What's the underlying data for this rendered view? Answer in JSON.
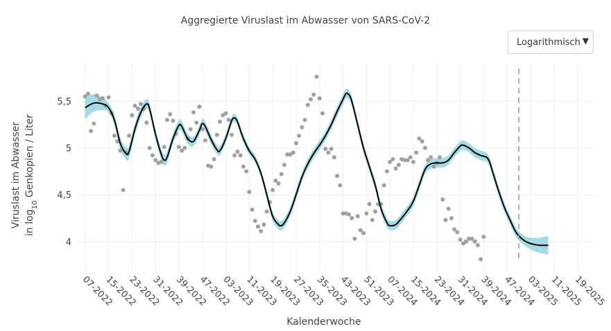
{
  "title": "Aggregierte Viruslast im Abwasser von SARS-CoV-2",
  "dropdown": {
    "selected": "Logarithmisch",
    "arrow_icon": "triangle-down-icon"
  },
  "chart_data": {
    "type": "line",
    "title": "Aggregierte Viruslast im Abwasser von SARS-CoV-2",
    "xlabel": "Kalenderwoche",
    "ylabel_line1": "Viruslast im Abwasser",
    "ylabel_line2_prefix": "in log",
    "ylabel_line2_sub": "10",
    "ylabel_line2_suffix": " Genkopien / Liter",
    "x_ticks": [
      "07-2022",
      "15-2022",
      "23-2022",
      "31-2022",
      "39-2022",
      "47-2022",
      "03-2023",
      "11-2023",
      "19-2023",
      "27-2023",
      "35-2023",
      "43-2023",
      "51-2023",
      "07-2024",
      "15-2024",
      "23-2024",
      "31-2024",
      "39-2024",
      "47-2024",
      "03-2025",
      "11-2025",
      "19-2025"
    ],
    "x_tick_index": [
      0,
      8,
      16,
      24,
      32,
      40,
      48,
      56,
      64,
      72,
      80,
      88,
      96,
      104,
      112,
      120,
      128,
      136,
      144,
      152,
      160,
      168
    ],
    "y_ticks": [
      4,
      4.5,
      5,
      5.5
    ],
    "y_tick_labels": [
      "4",
      "4,5",
      "5",
      "5,5"
    ],
    "ylim": [
      3.68,
      5.9
    ],
    "xlim": [
      -3,
      174
    ],
    "vline_week_index": 148,
    "colors": {
      "line": "#000000",
      "band": "#a6dbe6",
      "points": "#a0a0a0",
      "vline": "#999999",
      "grid": "#eeeeee"
    },
    "trend": [
      [
        0,
        5.43
      ],
      [
        3,
        5.48
      ],
      [
        6,
        5.47
      ],
      [
        8,
        5.43
      ],
      [
        10,
        5.3
      ],
      [
        12,
        5.05
      ],
      [
        14,
        4.94
      ],
      [
        15,
        4.96
      ],
      [
        17,
        5.2
      ],
      [
        19,
        5.38
      ],
      [
        21,
        5.47
      ],
      [
        22,
        5.42
      ],
      [
        24,
        5.15
      ],
      [
        26,
        4.93
      ],
      [
        27,
        4.87
      ],
      [
        28,
        4.9
      ],
      [
        30,
        5.1
      ],
      [
        32,
        5.24
      ],
      [
        33,
        5.23
      ],
      [
        35,
        5.1
      ],
      [
        37,
        5.07
      ],
      [
        39,
        5.19
      ],
      [
        40,
        5.26
      ],
      [
        41,
        5.23
      ],
      [
        43,
        5.09
      ],
      [
        45,
        4.98
      ],
      [
        46,
        4.97
      ],
      [
        48,
        5.1
      ],
      [
        50,
        5.29
      ],
      [
        51,
        5.32
      ],
      [
        52,
        5.28
      ],
      [
        54,
        5.1
      ],
      [
        56,
        4.97
      ],
      [
        58,
        4.88
      ],
      [
        60,
        4.73
      ],
      [
        62,
        4.5
      ],
      [
        64,
        4.27
      ],
      [
        66,
        4.18
      ],
      [
        67,
        4.17
      ],
      [
        68,
        4.2
      ],
      [
        70,
        4.32
      ],
      [
        72,
        4.5
      ],
      [
        74,
        4.69
      ],
      [
        76,
        4.83
      ],
      [
        78,
        4.94
      ],
      [
        80,
        5.03
      ],
      [
        82,
        5.13
      ],
      [
        84,
        5.25
      ],
      [
        86,
        5.39
      ],
      [
        88,
        5.52
      ],
      [
        89,
        5.58
      ],
      [
        90,
        5.57
      ],
      [
        91,
        5.5
      ],
      [
        93,
        5.25
      ],
      [
        95,
        5.0
      ],
      [
        97,
        4.8
      ],
      [
        99,
        4.6
      ],
      [
        101,
        4.35
      ],
      [
        103,
        4.2
      ],
      [
        104,
        4.17
      ],
      [
        106,
        4.18
      ],
      [
        108,
        4.25
      ],
      [
        110,
        4.33
      ],
      [
        112,
        4.43
      ],
      [
        114,
        4.6
      ],
      [
        116,
        4.77
      ],
      [
        118,
        4.83
      ],
      [
        120,
        4.84
      ],
      [
        122,
        4.84
      ],
      [
        124,
        4.87
      ],
      [
        126,
        4.95
      ],
      [
        128,
        5.02
      ],
      [
        129,
        5.03
      ],
      [
        131,
        5.0
      ],
      [
        133,
        4.95
      ],
      [
        135,
        4.92
      ],
      [
        137,
        4.9
      ],
      [
        138,
        4.85
      ],
      [
        139,
        4.75
      ],
      [
        141,
        4.55
      ],
      [
        143,
        4.37
      ],
      [
        145,
        4.23
      ],
      [
        147,
        4.1
      ],
      [
        149,
        4.03
      ],
      [
        151,
        3.99
      ],
      [
        153,
        3.97
      ],
      [
        155,
        3.96
      ],
      [
        157,
        3.96
      ],
      [
        158,
        3.96
      ]
    ],
    "band_halfwidth": [
      [
        0,
        0.12
      ],
      [
        8,
        0.05
      ],
      [
        15,
        0.07
      ],
      [
        22,
        0.05
      ],
      [
        27,
        0.06
      ],
      [
        40,
        0.05
      ],
      [
        60,
        0.04
      ],
      [
        67,
        0.05
      ],
      [
        89,
        0.05
      ],
      [
        104,
        0.05
      ],
      [
        128,
        0.05
      ],
      [
        140,
        0.05
      ],
      [
        150,
        0.05
      ],
      [
        158,
        0.1
      ]
    ],
    "points": [
      [
        0,
        5.55
      ],
      [
        1,
        5.58
      ],
      [
        2,
        5.18
      ],
      [
        3,
        5.26
      ],
      [
        4,
        5.56
      ],
      [
        5,
        5.52
      ],
      [
        6,
        5.53
      ],
      [
        7,
        5.45
      ],
      [
        8,
        5.54
      ],
      [
        9,
        5.37
      ],
      [
        10,
        5.13
      ],
      [
        11,
        5.07
      ],
      [
        12,
        4.97
      ],
      [
        13,
        4.55
      ],
      [
        14,
        4.95
      ],
      [
        15,
        5.13
      ],
      [
        16,
        5.35
      ],
      [
        17,
        5.45
      ],
      [
        18,
        5.42
      ],
      [
        19,
        5.47
      ],
      [
        20,
        5.42
      ],
      [
        21,
        5.27
      ],
      [
        22,
        5.0
      ],
      [
        23,
        4.92
      ],
      [
        24,
        4.87
      ],
      [
        25,
        4.84
      ],
      [
        26,
        4.85
      ],
      [
        27,
        5.01
      ],
      [
        28,
        5.3
      ],
      [
        29,
        5.36
      ],
      [
        30,
        5.29
      ],
      [
        31,
        5.15
      ],
      [
        32,
        5.01
      ],
      [
        33,
        4.97
      ],
      [
        34,
        5.0
      ],
      [
        35,
        5.1
      ],
      [
        36,
        5.2
      ],
      [
        37,
        5.38
      ],
      [
        38,
        5.27
      ],
      [
        39,
        5.44
      ],
      [
        40,
        5.2
      ],
      [
        41,
        5.08
      ],
      [
        42,
        4.81
      ],
      [
        43,
        4.8
      ],
      [
        44,
        4.88
      ],
      [
        45,
        5.14
      ],
      [
        46,
        5.28
      ],
      [
        47,
        5.35
      ],
      [
        48,
        5.37
      ],
      [
        49,
        5.3
      ],
      [
        50,
        5.14
      ],
      [
        51,
        4.92
      ],
      [
        52,
        4.96
      ],
      [
        53,
        4.92
      ],
      [
        54,
        4.8
      ],
      [
        55,
        4.75
      ],
      [
        56,
        4.53
      ],
      [
        57,
        4.34
      ],
      [
        58,
        4.22
      ],
      [
        59,
        4.16
      ],
      [
        60,
        4.11
      ],
      [
        61,
        4.18
      ],
      [
        62,
        4.32
      ],
      [
        63,
        4.42
      ],
      [
        64,
        4.55
      ],
      [
        65,
        4.65
      ],
      [
        66,
        4.62
      ],
      [
        67,
        4.72
      ],
      [
        68,
        4.82
      ],
      [
        69,
        4.93
      ],
      [
        70,
        4.93
      ],
      [
        71,
        4.95
      ],
      [
        72,
        5.05
      ],
      [
        73,
        5.13
      ],
      [
        74,
        5.22
      ],
      [
        75,
        5.3
      ],
      [
        76,
        5.46
      ],
      [
        77,
        5.52
      ],
      [
        78,
        5.57
      ],
      [
        79,
        5.76
      ],
      [
        80,
        5.53
      ],
      [
        81,
        5.37
      ],
      [
        82,
        4.99
      ],
      [
        83,
        4.95
      ],
      [
        84,
        4.99
      ],
      [
        85,
        4.9
      ],
      [
        86,
        4.7
      ],
      [
        87,
        4.6
      ],
      [
        88,
        4.3
      ],
      [
        89,
        4.3
      ],
      [
        90,
        4.29
      ],
      [
        91,
        4.25
      ],
      [
        92,
        4.03
      ],
      [
        93,
        4.27
      ],
      [
        94,
        4.12
      ],
      [
        95,
        4.09
      ],
      [
        96,
        4.3
      ],
      [
        97,
        4.4
      ],
      [
        98,
        4.23
      ],
      [
        99,
        4.32
      ],
      [
        100,
        4.4
      ],
      [
        101,
        4.4
      ],
      [
        102,
        4.6
      ],
      [
        103,
        4.75
      ],
      [
        104,
        4.85
      ],
      [
        105,
        4.88
      ],
      [
        106,
        4.78
      ],
      [
        107,
        4.82
      ],
      [
        108,
        4.88
      ],
      [
        109,
        4.87
      ],
      [
        110,
        4.87
      ],
      [
        111,
        4.9
      ],
      [
        112,
        4.85
      ],
      [
        113,
        4.95
      ],
      [
        114,
        5.1
      ],
      [
        115,
        5.07
      ],
      [
        116,
        5.0
      ],
      [
        117,
        4.87
      ],
      [
        118,
        4.9
      ],
      [
        119,
        4.8
      ],
      [
        120,
        4.84
      ],
      [
        121,
        4.9
      ],
      [
        122,
        4.45
      ],
      [
        123,
        4.23
      ],
      [
        124,
        4.35
      ],
      [
        125,
        4.25
      ],
      [
        126,
        4.13
      ],
      [
        127,
        4.1
      ],
      [
        128,
        4.02
      ],
      [
        129,
        3.98
      ],
      [
        130,
        4.0
      ],
      [
        131,
        4.03
      ],
      [
        132,
        4.03
      ],
      [
        133,
        4.0
      ],
      [
        134,
        3.96
      ],
      [
        135,
        3.81
      ],
      [
        136,
        4.05
      ]
    ]
  }
}
